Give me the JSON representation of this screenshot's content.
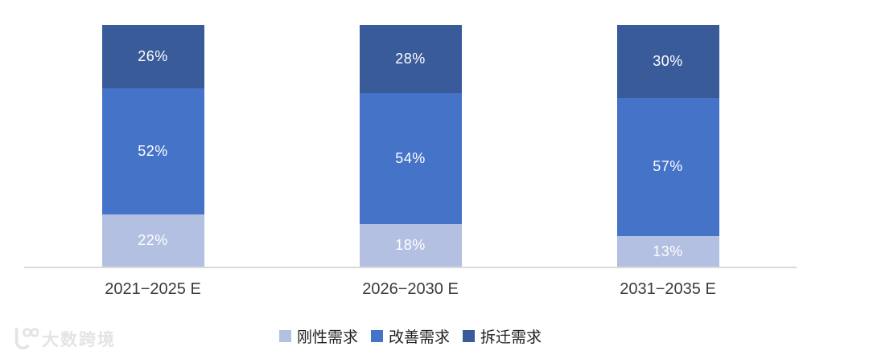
{
  "watermark": {
    "brand": "大数跨境"
  },
  "chart_data": {
    "type": "bar",
    "subtype": "stacked-percent-column",
    "title": "",
    "categories": [
      "2021−2025 E",
      "2026−2030 E",
      "2031−2035 E"
    ],
    "series": [
      {
        "name": "刚性需求",
        "color": "#b3c0e2",
        "values": [
          22,
          18,
          13
        ]
      },
      {
        "name": "改善需求",
        "color": "#4573c8",
        "values": [
          52,
          54,
          57
        ]
      },
      {
        "name": "拆迁需求",
        "color": "#3a5b9a",
        "values": [
          26,
          28,
          30
        ]
      }
    ],
    "stack_order": "bottom-to-top",
    "value_suffix": "%",
    "ylim": [
      0,
      100
    ],
    "grid": false,
    "legend_position": "bottom",
    "colors": {
      "axis_line": "#d9d9d9",
      "category_label": "#3b3b3b",
      "value_label": "#ffffff",
      "legend_text": "#1f1f1f",
      "background": "#ffffff"
    }
  }
}
